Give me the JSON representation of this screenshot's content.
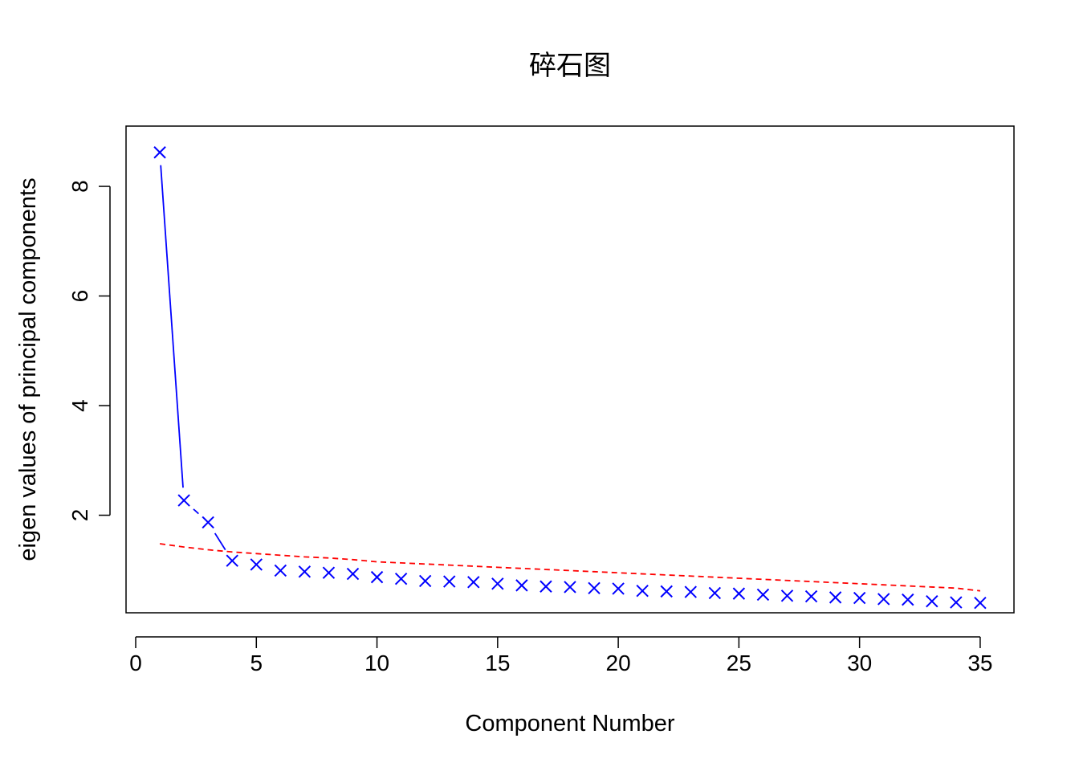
{
  "chart_data": {
    "type": "line",
    "title": "碎石图",
    "xlabel": "Component Number",
    "ylabel": "eigen values of principal components",
    "xlim": [
      -0.4,
      36.4
    ],
    "ylim": [
      0.22,
      9.1
    ],
    "xticks": [
      0,
      5,
      10,
      15,
      20,
      25,
      30,
      35
    ],
    "yticks": [
      2,
      4,
      6,
      8
    ],
    "grid": false,
    "legend": "none",
    "series": [
      {
        "role": "actual",
        "marker": "x",
        "line": "solid",
        "color": "#0000ff",
        "x": [
          1,
          2,
          3,
          4,
          5,
          6,
          7,
          8,
          9,
          10,
          11,
          12,
          13,
          14,
          15,
          16,
          17,
          18,
          19,
          20,
          21,
          22,
          23,
          24,
          25,
          26,
          27,
          28,
          29,
          30,
          31,
          32,
          33,
          34,
          35
        ],
        "values": [
          8.62,
          2.27,
          1.87,
          1.17,
          1.1,
          0.99,
          0.97,
          0.95,
          0.93,
          0.87,
          0.84,
          0.8,
          0.79,
          0.78,
          0.75,
          0.72,
          0.7,
          0.69,
          0.67,
          0.66,
          0.62,
          0.61,
          0.6,
          0.58,
          0.57,
          0.55,
          0.53,
          0.52,
          0.5,
          0.49,
          0.47,
          0.46,
          0.43,
          0.41,
          0.4
        ]
      },
      {
        "role": "simulated",
        "marker": "none",
        "line": "dashed",
        "color": "#ff0000",
        "x": [
          1,
          2,
          3,
          4,
          5,
          6,
          7,
          8,
          9,
          10,
          11,
          12,
          13,
          14,
          15,
          16,
          17,
          18,
          19,
          20,
          21,
          22,
          23,
          24,
          25,
          26,
          27,
          28,
          29,
          30,
          31,
          32,
          33,
          34,
          35
        ],
        "values": [
          1.48,
          1.42,
          1.37,
          1.33,
          1.3,
          1.27,
          1.24,
          1.22,
          1.19,
          1.15,
          1.13,
          1.11,
          1.09,
          1.07,
          1.05,
          1.03,
          1.01,
          0.99,
          0.97,
          0.95,
          0.93,
          0.91,
          0.89,
          0.87,
          0.85,
          0.83,
          0.81,
          0.79,
          0.77,
          0.75,
          0.73,
          0.71,
          0.69,
          0.67,
          0.62
        ]
      }
    ]
  }
}
